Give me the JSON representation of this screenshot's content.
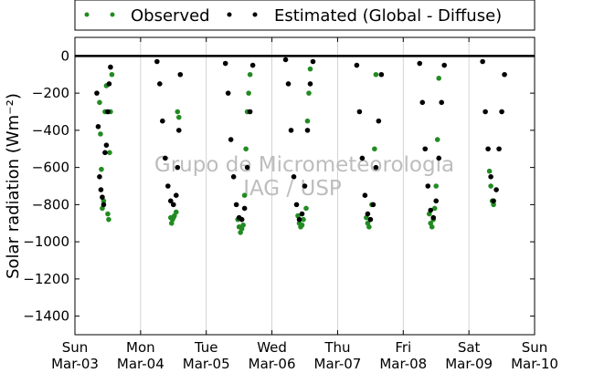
{
  "chart_data": {
    "type": "scatter",
    "title": "",
    "xlabel": "",
    "ylabel": "Solar radiation (Wm⁻²)",
    "ylim": [
      -1500,
      100
    ],
    "yticks": [
      0,
      -200,
      -400,
      -600,
      -800,
      -1000,
      -1200,
      -1400
    ],
    "xlim": [
      "2013-03-03",
      "2013-03-10"
    ],
    "x_ticks": [
      {
        "day": "Sun",
        "date": "Mar-03"
      },
      {
        "day": "Mon",
        "date": "Mar-04"
      },
      {
        "day": "Tue",
        "date": "Mar-05"
      },
      {
        "day": "Wed",
        "date": "Mar-06"
      },
      {
        "day": "Thu",
        "date": "Mar-07"
      },
      {
        "day": "Fri",
        "date": "Mar-08"
      },
      {
        "day": "Sat",
        "date": "Mar-09"
      },
      {
        "day": "Sun",
        "date": "Mar-10"
      }
    ],
    "grid": "vertical",
    "legend_position": "top-outside",
    "zero_line": true,
    "watermark": [
      "Grupo de Micrometeorologia",
      "IAG / USP"
    ],
    "series": [
      {
        "name": "Observed",
        "color": "#228b22",
        "points": [
          [
            "2013-03-03 09:00",
            -250
          ],
          [
            "2013-03-03 09:20",
            -420
          ],
          [
            "2013-03-03 09:40",
            -610
          ],
          [
            "2013-03-03 10:00",
            -820
          ],
          [
            "2013-03-03 10:30",
            -780
          ],
          [
            "2013-03-03 11:00",
            -300
          ],
          [
            "2013-03-03 11:30",
            -160
          ],
          [
            "2013-03-03 12:00",
            -850
          ],
          [
            "2013-03-03 12:20",
            -880
          ],
          [
            "2013-03-03 12:40",
            -520
          ],
          [
            "2013-03-03 13:00",
            -300
          ],
          [
            "2013-03-03 13:30",
            -100
          ],
          [
            "2013-03-04 11:00",
            -870
          ],
          [
            "2013-03-04 11:20",
            -900
          ],
          [
            "2013-03-04 11:40",
            -880
          ],
          [
            "2013-03-04 12:00",
            -870
          ],
          [
            "2013-03-04 12:20",
            -860
          ],
          [
            "2013-03-04 13:00",
            -840
          ],
          [
            "2013-03-04 13:30",
            -300
          ],
          [
            "2013-03-04 14:00",
            -330
          ],
          [
            "2013-03-05 11:30",
            -880
          ],
          [
            "2013-03-05 12:00",
            -920
          ],
          [
            "2013-03-05 12:30",
            -950
          ],
          [
            "2013-03-05 13:00",
            -930
          ],
          [
            "2013-03-05 13:30",
            -910
          ],
          [
            "2013-03-05 14:00",
            -750
          ],
          [
            "2013-03-05 14:30",
            -500
          ],
          [
            "2013-03-05 15:00",
            -300
          ],
          [
            "2013-03-05 15:30",
            -200
          ],
          [
            "2013-03-05 16:00",
            -100
          ],
          [
            "2013-03-06 09:30",
            -860
          ],
          [
            "2013-03-06 10:00",
            -900
          ],
          [
            "2013-03-06 10:30",
            -920
          ],
          [
            "2013-03-06 11:00",
            -910
          ],
          [
            "2013-03-06 11:30",
            -880
          ],
          [
            "2013-03-06 12:30",
            -820
          ],
          [
            "2013-03-06 13:00",
            -350
          ],
          [
            "2013-03-06 13:30",
            -200
          ],
          [
            "2013-03-06 14:00",
            -70
          ],
          [
            "2013-03-07 10:30",
            -870
          ],
          [
            "2013-03-07 11:00",
            -900
          ],
          [
            "2013-03-07 11:30",
            -920
          ],
          [
            "2013-03-07 12:00",
            -880
          ],
          [
            "2013-03-07 12:30",
            -800
          ],
          [
            "2013-03-07 13:30",
            -500
          ],
          [
            "2013-03-07 14:00",
            -100
          ],
          [
            "2013-03-08 09:30",
            -850
          ],
          [
            "2013-03-08 10:00",
            -900
          ],
          [
            "2013-03-08 10:30",
            -920
          ],
          [
            "2013-03-08 11:00",
            -880
          ],
          [
            "2013-03-08 11:30",
            -820
          ],
          [
            "2013-03-08 12:00",
            -700
          ],
          [
            "2013-03-08 12:30",
            -450
          ],
          [
            "2013-03-08 13:00",
            -120
          ],
          [
            "2013-03-09 07:30",
            -620
          ],
          [
            "2013-03-09 08:00",
            -700
          ],
          [
            "2013-03-09 08:30",
            -780
          ],
          [
            "2013-03-09 09:00",
            -800
          ]
        ]
      },
      {
        "name": "Estimated (Global - Diffuse)",
        "color": "#000000",
        "points": [
          [
            "2013-03-03 08:00",
            -200
          ],
          [
            "2013-03-03 08:30",
            -380
          ],
          [
            "2013-03-03 09:00",
            -650
          ],
          [
            "2013-03-03 09:30",
            -720
          ],
          [
            "2013-03-03 10:00",
            -760
          ],
          [
            "2013-03-03 10:30",
            -800
          ],
          [
            "2013-03-03 11:00",
            -520
          ],
          [
            "2013-03-03 11:30",
            -480
          ],
          [
            "2013-03-03 12:00",
            -300
          ],
          [
            "2013-03-03 12:30",
            -150
          ],
          [
            "2013-03-03 13:00",
            -60
          ],
          [
            "2013-03-04 06:00",
            -30
          ],
          [
            "2013-03-04 07:00",
            -150
          ],
          [
            "2013-03-04 08:00",
            -350
          ],
          [
            "2013-03-04 09:00",
            -550
          ],
          [
            "2013-03-04 10:00",
            -700
          ],
          [
            "2013-03-04 11:00",
            -780
          ],
          [
            "2013-03-04 12:00",
            -800
          ],
          [
            "2013-03-04 13:00",
            -750
          ],
          [
            "2013-03-04 13:30",
            -600
          ],
          [
            "2013-03-04 14:00",
            -400
          ],
          [
            "2013-03-04 14:30",
            -100
          ],
          [
            "2013-03-05 07:00",
            -40
          ],
          [
            "2013-03-05 08:00",
            -200
          ],
          [
            "2013-03-05 09:00",
            -450
          ],
          [
            "2013-03-05 10:00",
            -650
          ],
          [
            "2013-03-05 11:00",
            -800
          ],
          [
            "2013-03-05 12:00",
            -870
          ],
          [
            "2013-03-05 13:00",
            -880
          ],
          [
            "2013-03-05 14:00",
            -820
          ],
          [
            "2013-03-05 15:00",
            -600
          ],
          [
            "2013-03-05 16:00",
            -300
          ],
          [
            "2013-03-05 17:00",
            -50
          ],
          [
            "2013-03-06 05:00",
            -20
          ],
          [
            "2013-03-06 06:00",
            -150
          ],
          [
            "2013-03-06 07:00",
            -400
          ],
          [
            "2013-03-06 08:00",
            -650
          ],
          [
            "2013-03-06 09:00",
            -800
          ],
          [
            "2013-03-06 10:00",
            -880
          ],
          [
            "2013-03-06 11:00",
            -850
          ],
          [
            "2013-03-06 12:00",
            -700
          ],
          [
            "2013-03-06 13:00",
            -400
          ],
          [
            "2013-03-06 14:00",
            -150
          ],
          [
            "2013-03-06 15:00",
            -30
          ],
          [
            "2013-03-07 07:00",
            -50
          ],
          [
            "2013-03-07 08:00",
            -300
          ],
          [
            "2013-03-07 09:00",
            -550
          ],
          [
            "2013-03-07 10:00",
            -750
          ],
          [
            "2013-03-07 11:00",
            -850
          ],
          [
            "2013-03-07 12:00",
            -880
          ],
          [
            "2013-03-07 13:00",
            -800
          ],
          [
            "2013-03-07 14:00",
            -600
          ],
          [
            "2013-03-07 15:00",
            -350
          ],
          [
            "2013-03-07 16:00",
            -100
          ],
          [
            "2013-03-08 06:00",
            -40
          ],
          [
            "2013-03-08 07:00",
            -250
          ],
          [
            "2013-03-08 08:00",
            -500
          ],
          [
            "2013-03-08 09:00",
            -700
          ],
          [
            "2013-03-08 10:00",
            -830
          ],
          [
            "2013-03-08 11:00",
            -870
          ],
          [
            "2013-03-08 12:00",
            -780
          ],
          [
            "2013-03-08 13:00",
            -550
          ],
          [
            "2013-03-08 14:00",
            -250
          ],
          [
            "2013-03-08 15:00",
            -50
          ],
          [
            "2013-03-09 05:00",
            -30
          ],
          [
            "2013-03-09 06:00",
            -300
          ],
          [
            "2013-03-09 07:00",
            -500
          ],
          [
            "2013-03-09 08:00",
            -650
          ],
          [
            "2013-03-09 09:00",
            -780
          ],
          [
            "2013-03-09 10:00",
            -720
          ],
          [
            "2013-03-09 11:00",
            -500
          ],
          [
            "2013-03-09 12:00",
            -300
          ],
          [
            "2013-03-09 13:00",
            -100
          ]
        ]
      }
    ]
  }
}
